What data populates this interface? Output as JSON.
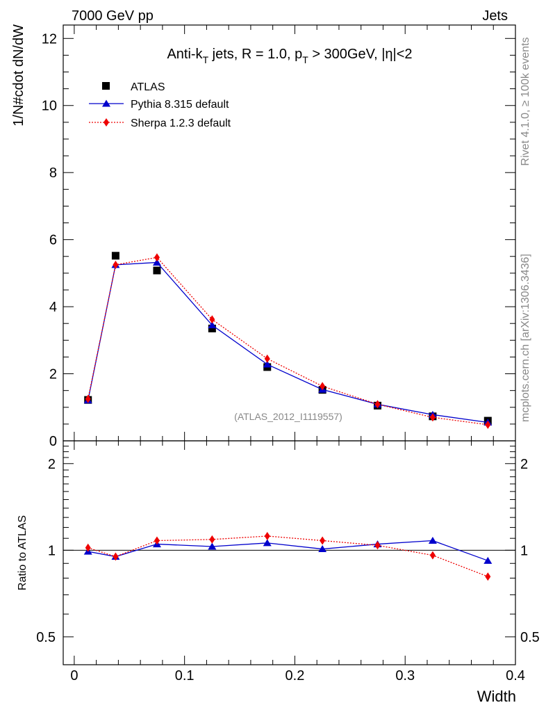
{
  "header": {
    "left": "7000 GeV pp",
    "right": "Jets"
  },
  "side": {
    "rivet": "Rivet 4.1.0, ≥ 100k events",
    "mcplots": "mcplots.cern.ch [arXiv:1306.3436]"
  },
  "chart_data": {
    "type": "line",
    "title": "Anti-kT jets, R = 1.0, pT > 300GeV, |η|<2",
    "title_parts": {
      "a": "Anti-k",
      "a_sub": "T",
      "b": " jets, R = 1.0, p",
      "b_sub": "T",
      "c": " > 300GeV, |η|<2"
    },
    "watermark": "(ATLAS_2012_I1119557)",
    "xlabel": "Width",
    "ylabel_main": "1/N#cdot dN/dW",
    "ylabel_ratio": "Ratio to ATLAS",
    "xlim": [
      -0.01,
      0.4
    ],
    "ylim_main": [
      0,
      12.4
    ],
    "ylim_ratio": [
      0.4,
      2.4
    ],
    "xticks": [
      0,
      0.1,
      0.2,
      0.3,
      0.4
    ],
    "xtick_labels": [
      "0",
      "0.1",
      "0.2",
      "0.3",
      "0.4"
    ],
    "yticks_main": [
      0,
      2,
      4,
      6,
      8,
      10,
      12
    ],
    "ytick_labels_main": [
      "0",
      "2",
      "4",
      "6",
      "8",
      "10",
      "12"
    ],
    "yticks_ratio": [
      0.5,
      1,
      2
    ],
    "ytick_labels_ratio": [
      "0.5",
      "1",
      "2"
    ],
    "x": [
      0.0125,
      0.0375,
      0.075,
      0.125,
      0.175,
      0.225,
      0.275,
      0.325,
      0.375
    ],
    "series": [
      {
        "name": "ATLAS",
        "color": "#000000",
        "marker": "square",
        "values": [
          1.22,
          5.52,
          5.08,
          3.35,
          2.2,
          1.52,
          1.05,
          0.73,
          0.6
        ],
        "ratio": [
          1,
          1,
          1,
          1,
          1,
          1,
          1,
          1,
          1
        ]
      },
      {
        "name": "Pythia 8.315 default",
        "color": "#0000cc",
        "marker": "triangle",
        "values": [
          1.21,
          5.25,
          5.32,
          3.45,
          2.28,
          1.53,
          1.09,
          0.78,
          0.55
        ],
        "ratio": [
          0.99,
          0.95,
          1.05,
          1.03,
          1.06,
          1.01,
          1.05,
          1.08,
          0.92
        ]
      },
      {
        "name": "Sherpa 1.2.3 default",
        "color": "#ee0000",
        "marker": "diamond",
        "values": [
          1.25,
          5.25,
          5.47,
          3.62,
          2.45,
          1.63,
          1.09,
          0.7,
          0.48
        ],
        "ratio": [
          1.02,
          0.95,
          1.08,
          1.09,
          1.12,
          1.08,
          1.04,
          0.96,
          0.81
        ]
      }
    ]
  }
}
